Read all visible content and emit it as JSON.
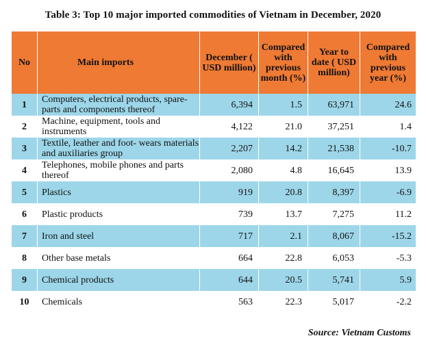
{
  "title": "Table 3: Top 10 major imported commodities of Vietnam in December, 2020",
  "headers": {
    "no": "No",
    "main_imports": "Main imports",
    "december": "December ( USD million)",
    "compared_month": "Compared with previous month (%)",
    "year_to_date": "Year to date ( USD million)",
    "compared_year": "Compared with previous year (%)"
  },
  "rows": [
    {
      "no": "1",
      "name": "Computers, electrical products, spare-parts and  components thereof",
      "december": "6,394",
      "cmp_month": "1.5",
      "ytd": "63,971",
      "cmp_year": "24.6"
    },
    {
      "no": "2",
      "name": "Machine, equipment, tools and instruments",
      "december": "4,122",
      "cmp_month": "21.0",
      "ytd": "37,251",
      "cmp_year": "1.4"
    },
    {
      "no": "3",
      "name": "Textile, leather and foot- wears materials and auxiliaries group",
      "december": "2,207",
      "cmp_month": "14.2",
      "ytd": "21,538",
      "cmp_year": "-10.7"
    },
    {
      "no": "4",
      "name": "Telephones, mobile phones and parts thereof",
      "december": "2,080",
      "cmp_month": "4.8",
      "ytd": "16,645",
      "cmp_year": "13.9"
    },
    {
      "no": "5",
      "name": "Plastics",
      "december": "919",
      "cmp_month": "20.8",
      "ytd": "8,397",
      "cmp_year": "-6.9"
    },
    {
      "no": "6",
      "name": "Plastic products",
      "december": "739",
      "cmp_month": "13.7",
      "ytd": "7,275",
      "cmp_year": "11.2"
    },
    {
      "no": "7",
      "name": "Iron and steel",
      "december": "717",
      "cmp_month": "2.1",
      "ytd": "8,067",
      "cmp_year": "-15.2"
    },
    {
      "no": "8",
      "name": "Other base metals",
      "december": "664",
      "cmp_month": "22.8",
      "ytd": "6,053",
      "cmp_year": "-5.3"
    },
    {
      "no": "9",
      "name": "Chemical products",
      "december": "644",
      "cmp_month": "20.5",
      "ytd": "5,741",
      "cmp_year": "5.9"
    },
    {
      "no": "10",
      "name": "Chemicals",
      "december": "563",
      "cmp_month": "22.3",
      "ytd": "5,017",
      "cmp_year": "-2.2"
    }
  ],
  "source": "Source: Vietnam Customs",
  "colors": {
    "header_bg": "#ef7a34",
    "row_blue": "#9dd6e9",
    "row_white": "#ffffff"
  }
}
